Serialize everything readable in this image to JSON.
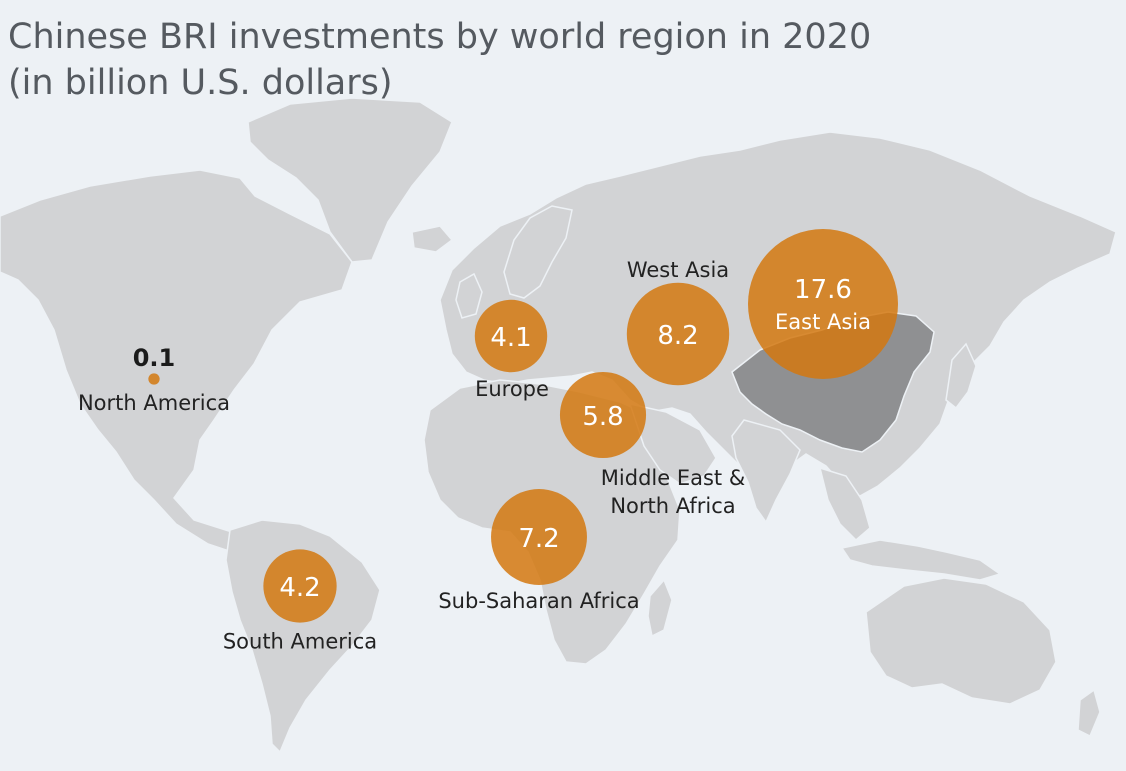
{
  "title": {
    "line1": "Chinese BRI investments by world region in 2020",
    "line2": "(in billion U.S. dollars)"
  },
  "colors": {
    "background": "#edf1f5",
    "land": "#d2d3d5",
    "highlight_country": "#8f9092",
    "bubble": "#d4780f",
    "text": "#222222",
    "title": "#555a60"
  },
  "map": {
    "highlighted_country": "China"
  },
  "chart_data": {
    "type": "bubble-map",
    "value_unit": "billion U.S. dollars",
    "regions": [
      {
        "name": "North America",
        "value": 0.1,
        "value_label": "0.1"
      },
      {
        "name": "South America",
        "value": 4.2,
        "value_label": "4.2"
      },
      {
        "name": "Europe",
        "value": 4.1,
        "value_label": "4.1"
      },
      {
        "name": "Middle East & North Africa",
        "name_lines": [
          "Middle East &",
          "North Africa"
        ],
        "value": 5.8,
        "value_label": "5.8"
      },
      {
        "name": "Sub-Saharan Africa",
        "value": 7.2,
        "value_label": "7.2"
      },
      {
        "name": "West Asia",
        "value": 8.2,
        "value_label": "8.2"
      },
      {
        "name": "East Asia",
        "value": 17.6,
        "value_label": "17.6"
      }
    ]
  }
}
